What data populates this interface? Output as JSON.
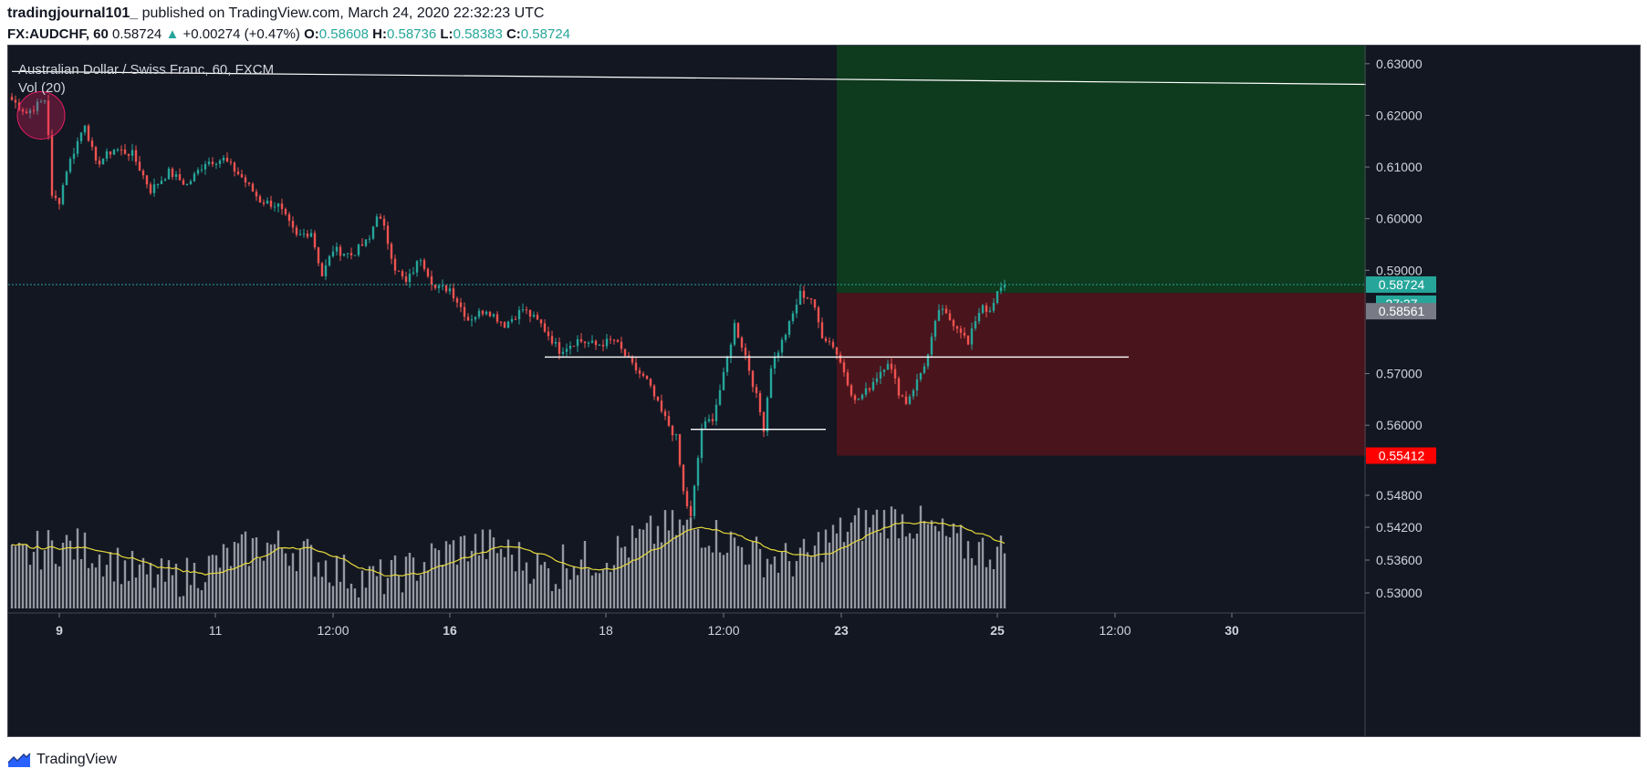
{
  "header": {
    "author": "tradingjournal101_",
    "published_text": "published on TradingView.com, March 24, 2020 22:32:23 UTC",
    "symbol": "FX:AUDCHF, 60",
    "last": "0.58724",
    "change": "+0.00274 (+0.47%)",
    "open_label": "O:",
    "open": "0.58608",
    "high_label": "H:",
    "high": "0.58736",
    "low_label": "L:",
    "low": "0.58383",
    "close_label": "C:",
    "close": "0.58724"
  },
  "legend": {
    "title": "Australian Dollar / Swiss Franc, 60, FXCM",
    "volume": "Vol (20)"
  },
  "footer": {
    "brand": "TradingView",
    "logo_icon": "tradingview-logo-icon"
  },
  "colors": {
    "background": "#131722",
    "up": "#26a69a",
    "down": "#ef5350",
    "target_zone": "#0e3a1e",
    "stop_zone": "#4a141c",
    "volume": "#9598a1",
    "volume_ma": "#e5d83b",
    "trendline": "#ffffff",
    "stop_badge": "#ff0000"
  },
  "chart_data": {
    "type": "candlestick",
    "title": "Australian Dollar / Swiss Franc, 60, FXCM",
    "interval": "60",
    "x_tick_labels": [
      "9",
      "11",
      "12:00",
      "16",
      "18",
      "12:00",
      "23",
      "25",
      "12:00",
      "30"
    ],
    "y_tick_labels": [
      "0.63000",
      "0.62000",
      "0.61000",
      "0.60000",
      "0.59000",
      "0.57000",
      "0.56000",
      "0.54800",
      "0.54200",
      "0.53600",
      "0.53000"
    ],
    "y_price_ticks": [
      0.63,
      0.62,
      0.61,
      0.6,
      0.59,
      0.57,
      0.56
    ],
    "y_volume_ticks": [
      "0.54800",
      "0.54200",
      "0.53600",
      "0.53000"
    ],
    "price_range": [
      0.5535,
      0.6335
    ],
    "price_badges": [
      {
        "label": "0.58724",
        "value": 0.58724,
        "kind": "last"
      },
      {
        "label": "27:37",
        "kind": "countdown"
      },
      {
        "label": "0.58561",
        "value": 0.58561,
        "kind": "entry"
      },
      {
        "label": "0.55412",
        "value": 0.55412,
        "kind": "stop"
      }
    ],
    "anchors": [
      [
        0,
        0.623
      ],
      [
        4,
        0.6205
      ],
      [
        9,
        0.623
      ],
      [
        10,
        0.6165
      ],
      [
        11,
        0.604
      ],
      [
        13,
        0.6035
      ],
      [
        15,
        0.6095
      ],
      [
        20,
        0.6185
      ],
      [
        23,
        0.6105
      ],
      [
        28,
        0.6135
      ],
      [
        33,
        0.6125
      ],
      [
        38,
        0.6055
      ],
      [
        43,
        0.609
      ],
      [
        48,
        0.6065
      ],
      [
        53,
        0.611
      ],
      [
        58,
        0.6115
      ],
      [
        63,
        0.608
      ],
      [
        68,
        0.6035
      ],
      [
        73,
        0.6025
      ],
      [
        78,
        0.5965
      ],
      [
        82,
        0.5975
      ],
      [
        85,
        0.589
      ],
      [
        88,
        0.594
      ],
      [
        93,
        0.593
      ],
      [
        98,
        0.596
      ],
      [
        100,
        0.601
      ],
      [
        102,
        0.598
      ],
      [
        105,
        0.5905
      ],
      [
        108,
        0.5875
      ],
      [
        112,
        0.5925
      ],
      [
        116,
        0.5865
      ],
      [
        120,
        0.5865
      ],
      [
        125,
        0.5805
      ],
      [
        130,
        0.5825
      ],
      [
        135,
        0.5795
      ],
      [
        140,
        0.5825
      ],
      [
        145,
        0.5795
      ],
      [
        150,
        0.5745
      ],
      [
        155,
        0.5765
      ],
      [
        160,
        0.5755
      ],
      [
        165,
        0.5765
      ],
      [
        170,
        0.5715
      ],
      [
        174,
        0.5685
      ],
      [
        178,
        0.5625
      ],
      [
        182,
        0.5575
      ],
      [
        184,
        0.547
      ],
      [
        186,
        0.542
      ],
      [
        189,
        0.5595
      ],
      [
        192,
        0.5615
      ],
      [
        195,
        0.5695
      ],
      [
        198,
        0.5795
      ],
      [
        201,
        0.5735
      ],
      [
        204,
        0.5655
      ],
      [
        206,
        0.5595
      ],
      [
        208,
        0.5715
      ],
      [
        210,
        0.5745
      ],
      [
        213,
        0.5795
      ],
      [
        216,
        0.5855
      ],
      [
        219,
        0.5845
      ],
      [
        222,
        0.5775
      ],
      [
        225,
        0.5755
      ],
      [
        228,
        0.5705
      ],
      [
        231,
        0.5645
      ],
      [
        234,
        0.5665
      ],
      [
        237,
        0.5695
      ],
      [
        240,
        0.5725
      ],
      [
        243,
        0.5665
      ],
      [
        245,
        0.5645
      ],
      [
        248,
        0.5685
      ],
      [
        251,
        0.5735
      ],
      [
        254,
        0.5825
      ],
      [
        257,
        0.5805
      ],
      [
        260,
        0.5785
      ],
      [
        262,
        0.5755
      ],
      [
        264,
        0.5805
      ],
      [
        266,
        0.5835
      ],
      [
        268,
        0.5815
      ],
      [
        270,
        0.5855
      ],
      [
        272,
        0.5872
      ]
    ],
    "notes": "Hourly candles; anchors are [candle index, close price] with intermediate candles smoothed between them."
  },
  "annotations": {
    "trendline": [
      [
        0,
        0.6285
      ],
      [
        371,
        0.626
      ]
    ],
    "horizontal_levels": [
      {
        "value": 0.5732,
        "from": 146,
        "to": 306
      },
      {
        "value": 0.5592,
        "from": 186,
        "to": 223
      }
    ],
    "position_long": {
      "entry": 0.58561,
      "target": 0.6335,
      "stop": 0.55412,
      "from": 226,
      "to": 371
    },
    "highlight_circle": {
      "at": 8,
      "value": 0.62
    }
  }
}
